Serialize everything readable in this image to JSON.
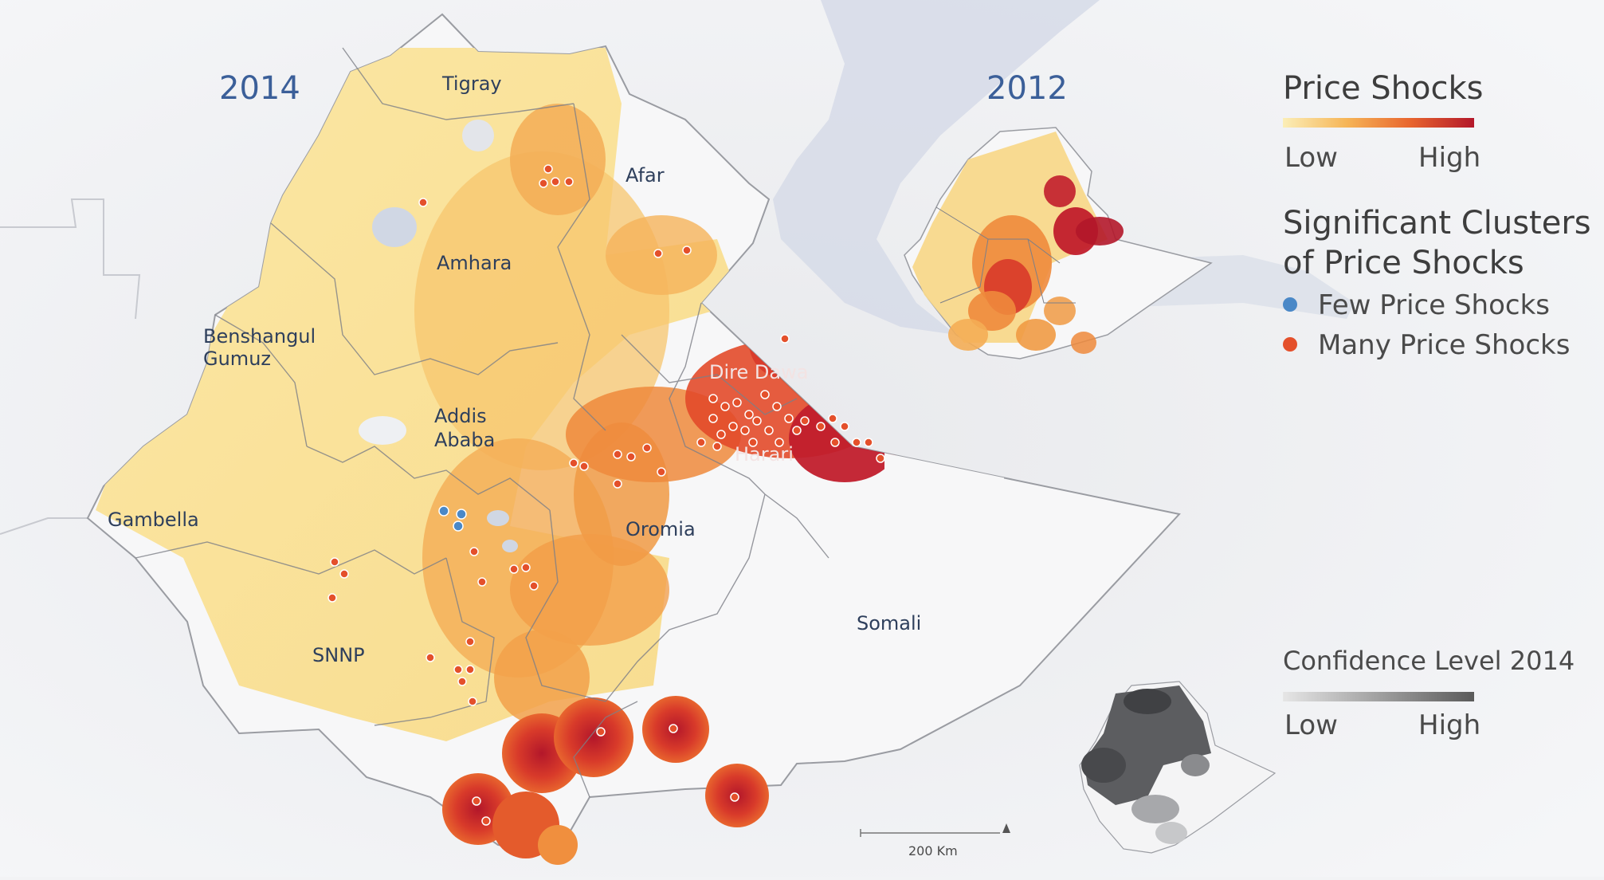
{
  "main_map": {
    "year_label": "2014",
    "regions": {
      "tigray": "Tigray",
      "afar": "Afar",
      "amhara": "Amhara",
      "benshangul_1": "Benshangul",
      "benshangul_2": "Gumuz",
      "addis_1": "Addis",
      "addis_2": "Ababa",
      "gambella": "Gambella",
      "oromia": "Oromia",
      "dire_dawa": "Dire Dawa",
      "harari": "Harari",
      "somali": "Somali",
      "snnp": "SNNP"
    },
    "scale_bar": "200 Km"
  },
  "inset_2012": {
    "year_label": "2012"
  },
  "legend": {
    "price_shocks": {
      "title": "Price Shocks",
      "low": "Low",
      "high": "High",
      "ramp_colors": [
        "#fbeeb7",
        "#f6b557",
        "#e8652e",
        "#b3172a"
      ]
    },
    "clusters": {
      "title_line1": "Significant Clusters",
      "title_line2": "of Price Shocks",
      "few": {
        "label": "Few Price Shocks",
        "color": "#4a88c7"
      },
      "many": {
        "label": "Many Price Shocks",
        "color": "#e4502b"
      }
    },
    "confidence": {
      "title": "Confidence Level 2014",
      "low": "Low",
      "high": "High",
      "ramp_colors": [
        "#e6e6e6",
        "#5a5a5a"
      ]
    }
  }
}
